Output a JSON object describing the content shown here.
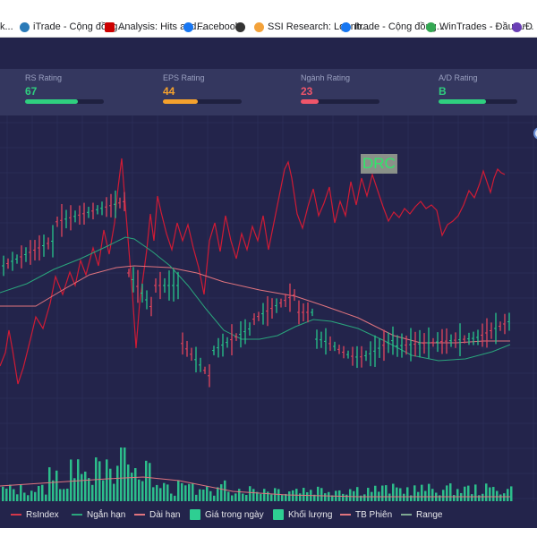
{
  "bookmarks": [
    {
      "icon": "partial-bookmark-icon",
      "label": "k...",
      "color": "#444444"
    },
    {
      "icon": "itrade-icon",
      "label": "iTrade - Cộng đồng...",
      "color": "#2a7ab8"
    },
    {
      "icon": "cnn-icon",
      "label": "Analysis: Hits and...",
      "color": "#cc0000"
    },
    {
      "icon": "facebook-icon",
      "label": "Facebook",
      "color": "#1877f2"
    },
    {
      "icon": "globe-icon",
      "label": "",
      "color": "#333333"
    },
    {
      "icon": "ssi-icon",
      "label": "SSI Research: Lợi nh...",
      "color": "#f3a23a"
    },
    {
      "icon": "facebook-icon",
      "label": "Itrade - Cộng đồng...",
      "color": "#1877f2"
    },
    {
      "icon": "play-store-icon",
      "label": "WinTrades - Đầu tư...",
      "color": "#34a853"
    },
    {
      "icon": "partial-bookmark-icon",
      "label": "Đ",
      "color": "#6a3fb5"
    }
  ],
  "ratings": [
    {
      "label": "RS Rating",
      "value": "67",
      "color": "#2fcf7f",
      "fill": 0.67
    },
    {
      "label": "EPS Rating",
      "value": "44",
      "color": "#f4a12d",
      "fill": 0.44
    },
    {
      "label": "Ngành Rating",
      "value": "23",
      "color": "#f0556a",
      "fill": 0.23
    },
    {
      "label": "A/D Rating",
      "value": "B",
      "color": "#2fcf7f",
      "fill": 0.6
    }
  ],
  "ticker": "DRC",
  "legend": [
    {
      "label": "RsIndex",
      "type": "line",
      "color": "#d4374a"
    },
    {
      "label": "Ngắn hạn",
      "type": "line",
      "color": "#2aa57c"
    },
    {
      "label": "Dài hạn",
      "type": "line",
      "color": "#e0747e"
    },
    {
      "label": "Giá trong ngày",
      "type": "box",
      "color": "#2ecf92"
    },
    {
      "label": "Khối lượng",
      "type": "box",
      "color": "#2ecf92"
    },
    {
      "label": "TB Phiên",
      "type": "line",
      "color": "#e0747e"
    },
    {
      "label": "Range",
      "type": "line",
      "color": "#7fa892"
    }
  ],
  "colors": {
    "up": "#27c48a",
    "down": "#e0455d",
    "rsindex": "#d01b35",
    "short_ma": "#2aa57c",
    "long_ma": "#e0747e",
    "volume": "#2ecf92",
    "grid": "#3a3c6a"
  }
}
